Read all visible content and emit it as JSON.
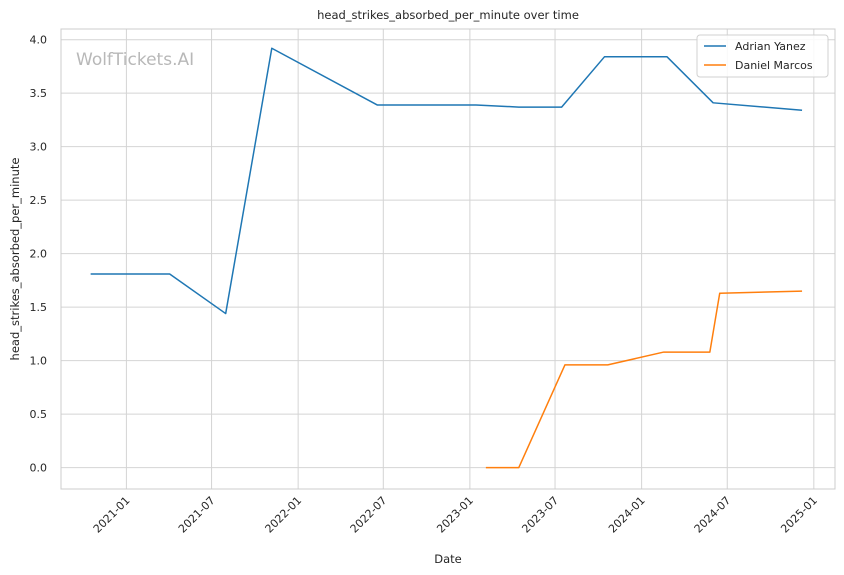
{
  "chart_data": {
    "type": "line",
    "title": "head_strikes_absorbed_per_minute over time",
    "xlabel": "Date",
    "ylabel": "head_strikes_absorbed_per_minute",
    "watermark": "WolfTickets.AI",
    "xlim": [
      "2020-08-15",
      "2025-02-15"
    ],
    "ylim": [
      -0.2,
      4.1
    ],
    "xticks": [
      "2021-01",
      "2021-07",
      "2022-01",
      "2022-07",
      "2023-01",
      "2023-07",
      "2024-01",
      "2024-07",
      "2025-01"
    ],
    "yticks": [
      0.0,
      0.5,
      1.0,
      1.5,
      2.0,
      2.5,
      3.0,
      3.5,
      4.0
    ],
    "grid": true,
    "legend_position": "top-right",
    "series": [
      {
        "name": "Adrian Yanez",
        "color": "#1f77b4",
        "points": [
          {
            "x": "2020-10-17",
            "y": 1.81
          },
          {
            "x": "2021-04-03",
            "y": 1.81
          },
          {
            "x": "2021-07-31",
            "y": 1.44
          },
          {
            "x": "2021-11-06",
            "y": 3.92
          },
          {
            "x": "2022-06-18",
            "y": 3.39
          },
          {
            "x": "2023-01-14",
            "y": 3.39
          },
          {
            "x": "2023-04-15",
            "y": 3.37
          },
          {
            "x": "2023-07-15",
            "y": 3.37
          },
          {
            "x": "2023-10-14",
            "y": 3.84
          },
          {
            "x": "2024-02-24",
            "y": 3.84
          },
          {
            "x": "2024-06-01",
            "y": 3.41
          },
          {
            "x": "2024-12-07",
            "y": 3.34
          }
        ]
      },
      {
        "name": "Daniel Marcos",
        "color": "#ff7f0e",
        "points": [
          {
            "x": "2023-02-04",
            "y": 0.0
          },
          {
            "x": "2023-04-15",
            "y": 0.0
          },
          {
            "x": "2023-07-22",
            "y": 0.96
          },
          {
            "x": "2023-10-21",
            "y": 0.96
          },
          {
            "x": "2024-02-17",
            "y": 1.08
          },
          {
            "x": "2024-05-25",
            "y": 1.08
          },
          {
            "x": "2024-06-15",
            "y": 1.63
          },
          {
            "x": "2024-12-07",
            "y": 1.65
          }
        ]
      }
    ]
  }
}
